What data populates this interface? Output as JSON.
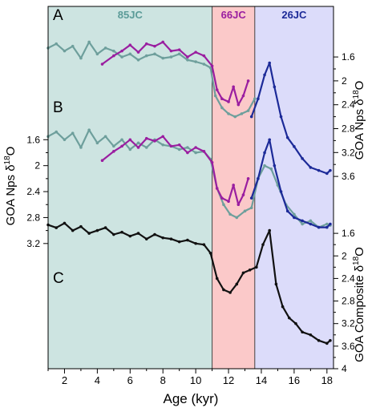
{
  "chart_data": {
    "type": "line",
    "x_axis": {
      "label": "Age (kyr)",
      "range": [
        1,
        18.4
      ],
      "ticks": [
        2,
        4,
        6,
        8,
        10,
        12,
        14,
        16,
        18
      ]
    },
    "regions": [
      {
        "label": "85JC",
        "x": [
          1,
          11.0
        ],
        "fill": "#cde4e1",
        "label_color": "#5b9b98"
      },
      {
        "label": "66JC",
        "x": [
          11.0,
          13.6
        ],
        "fill": "#fbc9c9",
        "label_color": "#9a1ea0"
      },
      {
        "label": "26JC",
        "x": [
          13.6,
          18.4
        ],
        "fill": "#dcdcfa",
        "label_color": "#1c2a98"
      }
    ],
    "right_axis_top": {
      "label_prefix": "GOA Nps δ",
      "label_sup": "18",
      "label_suffix": "O",
      "reversed": true,
      "range": [
        1.25,
        3.8
      ],
      "ticks": [
        "1.6",
        "2",
        "2.4",
        "2.8",
        "3.2",
        "3.6"
      ]
    },
    "left_axis": {
      "label_prefix": "GOA Nps δ",
      "label_sup": "18",
      "label_suffix": "O",
      "reversed": true,
      "range": [
        1.3,
        3.4
      ],
      "ticks": [
        "1.6",
        "2",
        "2.4",
        "2.8",
        "3.2"
      ]
    },
    "right_axis_bottom": {
      "label_prefix": "GOA Composite δ",
      "label_sup": "18",
      "label_suffix": "O",
      "reversed": true,
      "range": [
        1.3,
        4.0
      ],
      "ticks": [
        "1.6",
        "2",
        "2.4",
        "2.8",
        "3.2",
        "3.6",
        "4"
      ]
    },
    "panels": [
      {
        "label": "A",
        "axis": "right_axis_top",
        "series": [
          {
            "name": "85JC",
            "color": "#6e9f9c",
            "x": [
              1,
              1.5,
              2,
              2.5,
              3,
              3.5,
              4,
              4.5,
              5,
              5.5,
              6,
              6.5,
              7,
              7.5,
              8,
              8.5,
              9,
              9.5,
              10,
              10.5,
              10.9,
              11.2,
              11.6,
              12,
              12.4,
              12.8,
              13.2,
              13.6
            ],
            "y": [
              1.45,
              1.38,
              1.5,
              1.42,
              1.62,
              1.35,
              1.55,
              1.45,
              1.5,
              1.6,
              1.55,
              1.65,
              1.58,
              1.55,
              1.62,
              1.6,
              1.55,
              1.65,
              1.68,
              1.72,
              1.78,
              2.25,
              2.45,
              2.55,
              2.6,
              2.55,
              2.5,
              2.3
            ]
          },
          {
            "name": "66JC",
            "color": "#9a1ea0",
            "x": [
              4.3,
              5,
              5.5,
              6,
              6.5,
              7,
              7.5,
              8,
              8.5,
              9,
              9.5,
              10,
              10.5,
              11,
              11.3,
              11.6,
              12,
              12.3,
              12.6,
              12.9,
              13.2
            ],
            "y": [
              1.72,
              1.58,
              1.5,
              1.4,
              1.52,
              1.38,
              1.42,
              1.35,
              1.5,
              1.48,
              1.6,
              1.52,
              1.58,
              1.75,
              2.15,
              2.3,
              2.35,
              2.1,
              2.4,
              2.25,
              2.0
            ]
          },
          {
            "name": "26JC",
            "color": "#1c2a98",
            "x": [
              13.4,
              13.8,
              14.2,
              14.5,
              14.8,
              15.2,
              15.6,
              16,
              16.5,
              17,
              17.5,
              18,
              18.2
            ],
            "y": [
              2.6,
              2.3,
              1.9,
              1.7,
              2.1,
              2.6,
              2.95,
              3.1,
              3.3,
              3.45,
              3.5,
              3.55,
              3.5
            ]
          }
        ]
      },
      {
        "label": "B",
        "axis": "left_axis",
        "series": [
          {
            "name": "85JC",
            "color": "#6e9f9c",
            "x": [
              1,
              1.5,
              2,
              2.5,
              3,
              3.5,
              4,
              4.5,
              5,
              5.5,
              6,
              6.5,
              7,
              7.5,
              8,
              8.5,
              9,
              9.5,
              10,
              10.5,
              10.9,
              11.3,
              11.7,
              12.1,
              12.5,
              13,
              13.4,
              13.8,
              14.2,
              14.6,
              15,
              15.5,
              16,
              16.5,
              17,
              17.5,
              18,
              18.2
            ],
            "y": [
              1.55,
              1.48,
              1.6,
              1.5,
              1.72,
              1.45,
              1.65,
              1.55,
              1.7,
              1.6,
              1.75,
              1.65,
              1.72,
              1.6,
              1.68,
              1.7,
              1.75,
              1.72,
              1.8,
              1.78,
              1.9,
              2.35,
              2.6,
              2.75,
              2.8,
              2.7,
              2.65,
              2.2,
              2.0,
              2.05,
              2.3,
              2.6,
              2.75,
              2.9,
              2.85,
              2.95,
              2.9,
              2.92
            ]
          },
          {
            "name": "66JC",
            "color": "#9a1ea0",
            "x": [
              4.3,
              5,
              5.5,
              6,
              6.5,
              7,
              7.5,
              8,
              8.5,
              9,
              9.5,
              10,
              10.5,
              11,
              11.3,
              11.6,
              12,
              12.3,
              12.6,
              12.9,
              13.2
            ],
            "y": [
              1.92,
              1.78,
              1.7,
              1.6,
              1.72,
              1.58,
              1.62,
              1.55,
              1.7,
              1.68,
              1.8,
              1.72,
              1.78,
              1.95,
              2.35,
              2.5,
              2.55,
              2.3,
              2.6,
              2.45,
              2.2
            ]
          },
          {
            "name": "26JC",
            "color": "#1c2a98",
            "x": [
              13.4,
              13.8,
              14.2,
              14.5,
              14.8,
              15.2,
              15.6,
              16,
              16.5,
              17,
              17.5,
              18,
              18.2
            ],
            "y": [
              2.5,
              2.2,
              1.8,
              1.6,
              2.0,
              2.4,
              2.7,
              2.8,
              2.85,
              2.9,
              2.95,
              2.95,
              2.9
            ]
          }
        ]
      },
      {
        "label": "C",
        "axis": "right_axis_bottom",
        "series": [
          {
            "name": "Composite",
            "color": "#111111",
            "x": [
              1,
              1.5,
              2,
              2.5,
              3,
              3.5,
              4,
              4.5,
              5,
              5.5,
              6,
              6.5,
              7,
              7.5,
              8,
              8.5,
              9,
              9.5,
              10,
              10.5,
              10.9,
              11.3,
              11.7,
              12.1,
              12.5,
              12.9,
              13.3,
              13.7,
              14.1,
              14.5,
              14.9,
              15.3,
              15.7,
              16.1,
              16.5,
              17,
              17.5,
              18,
              18.2
            ],
            "y": [
              1.45,
              1.5,
              1.42,
              1.55,
              1.48,
              1.6,
              1.55,
              1.5,
              1.62,
              1.58,
              1.65,
              1.6,
              1.7,
              1.62,
              1.68,
              1.7,
              1.75,
              1.72,
              1.78,
              1.8,
              1.95,
              2.4,
              2.6,
              2.65,
              2.5,
              2.3,
              2.25,
              2.2,
              1.8,
              1.55,
              2.5,
              2.9,
              3.1,
              3.2,
              3.35,
              3.4,
              3.5,
              3.55,
              3.5
            ]
          }
        ]
      }
    ]
  }
}
